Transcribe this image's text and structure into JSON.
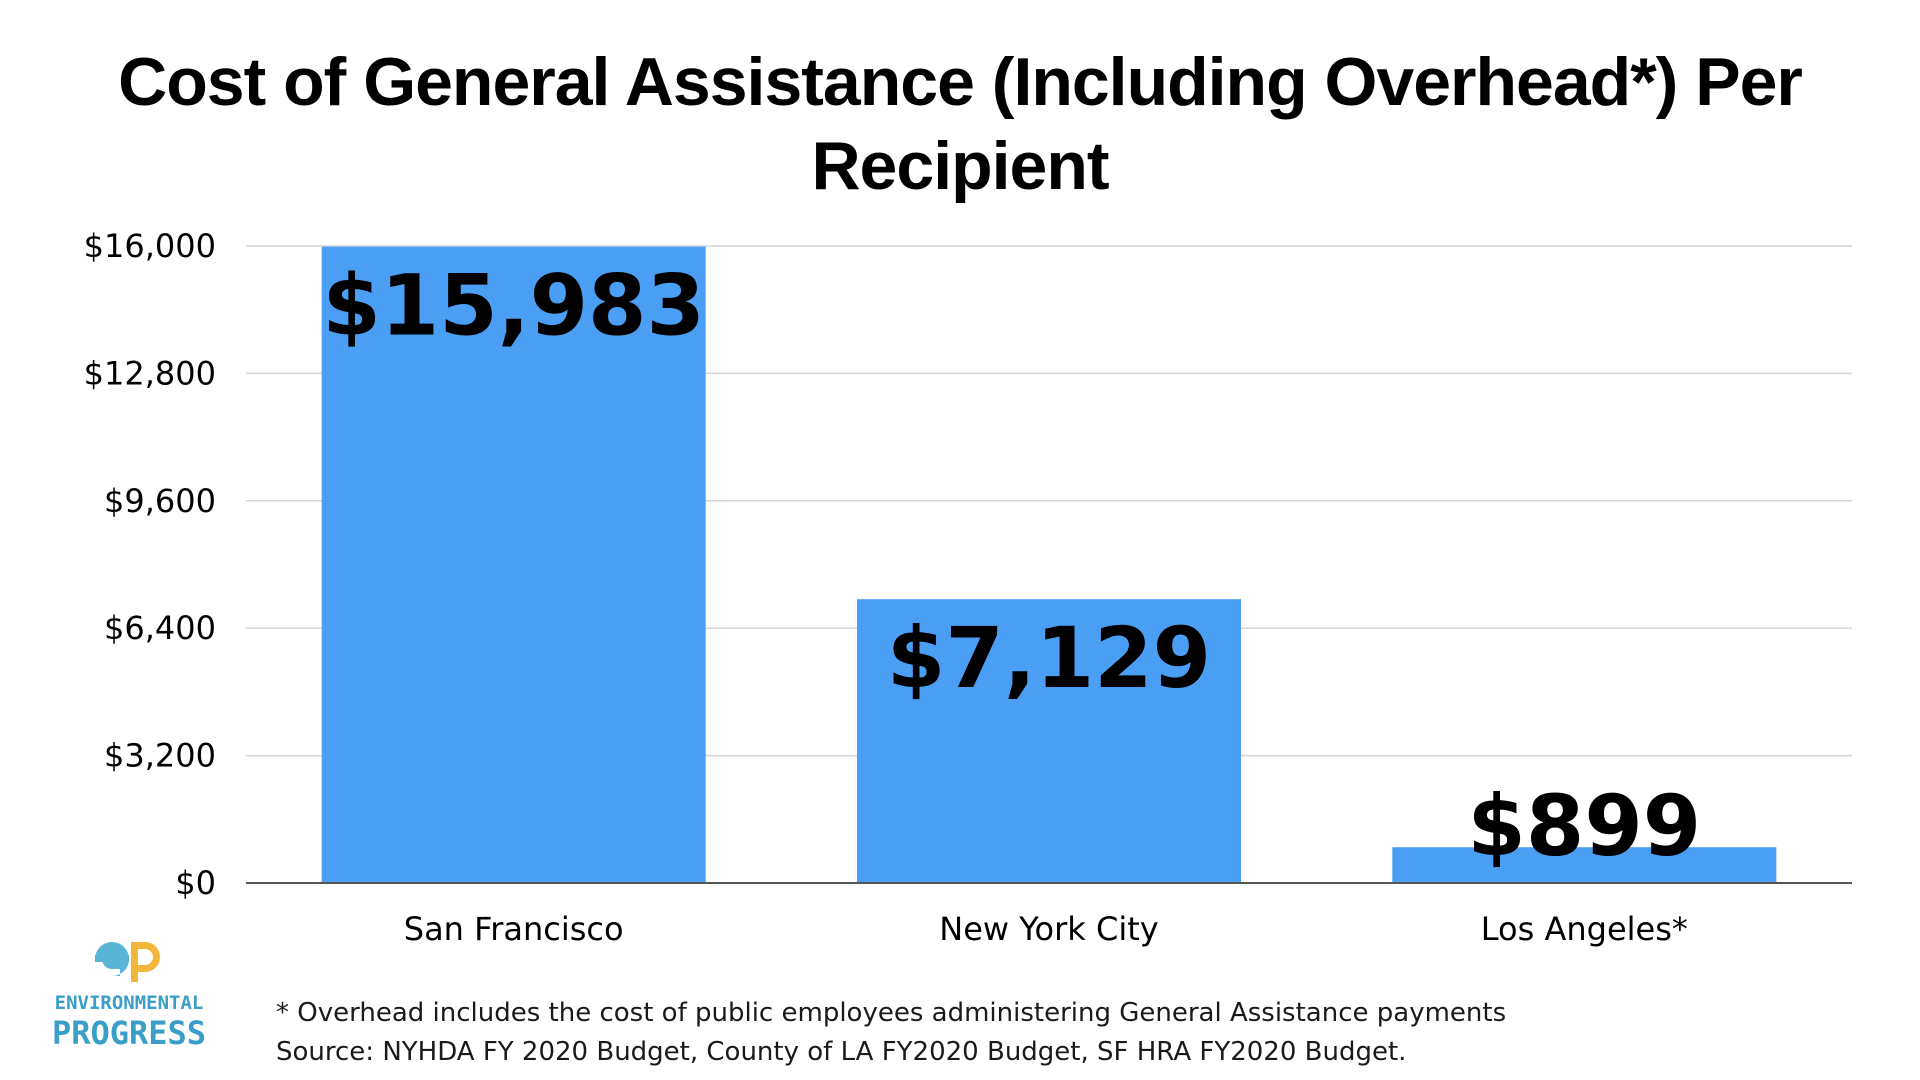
{
  "chart_data": {
    "type": "bar",
    "title": "Cost of General Assistance (Including Overhead*) Per Recipient",
    "categories": [
      "San Francisco",
      "New York City",
      "Los Angeles*"
    ],
    "values": [
      15983,
      7129,
      899
    ],
    "data_labels": [
      "$15,983",
      "$7,129",
      "$899"
    ],
    "ylim": [
      0,
      16000
    ],
    "yticks": [
      0,
      3200,
      6400,
      9600,
      12800,
      16000
    ],
    "ytick_labels": [
      "$0",
      "$3,200",
      "$6,400",
      "$9,600",
      "$12,800",
      "$16,000"
    ],
    "xlabel": "",
    "ylabel": "",
    "grid": true,
    "bar_color": "#4a9ff5",
    "grid_color": "#d4d4d4",
    "axis_color": "#555555"
  },
  "footnotes": {
    "overhead_note": "* Overhead includes the cost of public employees administering General Assistance payments",
    "source_note": "Source: NYHDA FY 2020 Budget, County of LA FY2020 Budget, SF HRA FY2020 Budget."
  },
  "logo": {
    "line1": "ENVIRONMENTAL",
    "line2": "PROGRESS",
    "mark_colors": {
      "e": "#5ab4d6",
      "p": "#f2b63b"
    }
  }
}
